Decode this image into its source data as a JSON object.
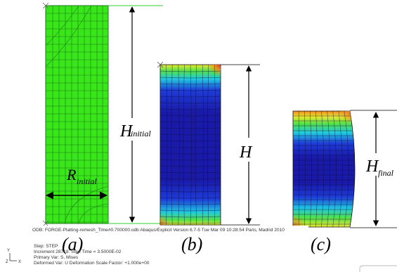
{
  "colors": {
    "green": "#38e61a",
    "green_mesh": "#1f7a18",
    "blue_deep": "#1a1aa8",
    "blue": "#1e3cd8",
    "cyan": "#21c8e0",
    "green_band": "#52e04a",
    "yellow": "#e8e830",
    "orange": "#f08a20",
    "red": "#e02020",
    "line": "#000000",
    "guide": "#2fd12f"
  },
  "labels": {
    "h_initial_main": "H",
    "h_initial_sub": "initial",
    "h_main": "H",
    "h_final_main": "H",
    "h_final_sub": "final",
    "r_initial_main": "R",
    "r_initial_sub": "initial",
    "panel_a": "(a)",
    "panel_b": "(b)",
    "panel_c": "(c)"
  },
  "abaqus": {
    "odb_line": "ODB: FORGE-Platting-remesh_Time#0.700000.odb     Abaqus/Explicit Version 6.7-5    Tue Mar 09 10:28:54 Paris, Madrid 2010",
    "step_line": "Step: STEP",
    "increment_line": "Increment     28718: Step Time =    3.5000E-02",
    "primary_line": "Primary Var: S, Mises",
    "deformed_line": "Deformed Var: U   Deformation Scale Factor: +1.000e+00",
    "axis_y": "Y",
    "axis_z": "Z",
    "axis_x": "X"
  }
}
